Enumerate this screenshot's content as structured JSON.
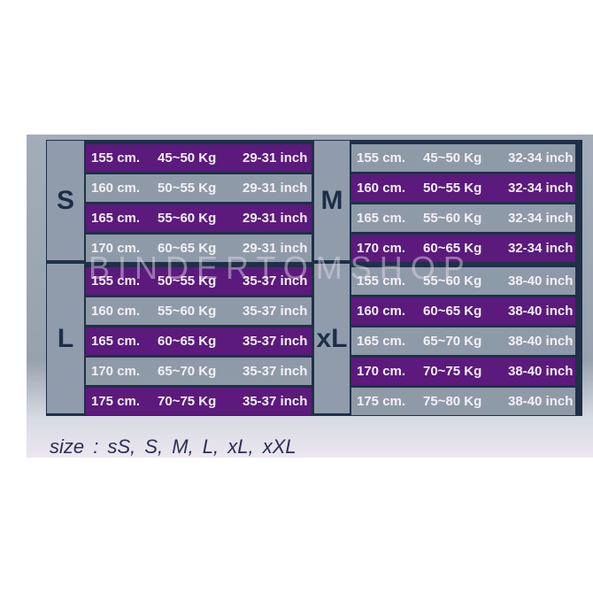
{
  "colors": {
    "purple_row": "#5b1a7c",
    "gray_row": "#8f9aa8",
    "border": "#1f3048",
    "label_text": "#1d2e48"
  },
  "sections": [
    {
      "size": "S",
      "first_row": "purple",
      "rows": [
        [
          "155 cm.",
          "45~50 Kg",
          "29-31 inch"
        ],
        [
          "160 cm.",
          "50~55 Kg",
          "29-31 inch"
        ],
        [
          "165 cm.",
          "55~60 Kg",
          "29-31 inch"
        ],
        [
          "170 cm.",
          "60~65 Kg",
          "29-31 inch"
        ]
      ]
    },
    {
      "size": "M",
      "first_row": "gray",
      "rows": [
        [
          "155 cm.",
          "45~50 Kg",
          "32-34 inch"
        ],
        [
          "160 cm.",
          "50~55 Kg",
          "32-34 inch"
        ],
        [
          "165 cm.",
          "55~60 Kg",
          "32-34 inch"
        ],
        [
          "170 cm.",
          "60~65 Kg",
          "32-34 inch"
        ]
      ]
    },
    {
      "size": "L",
      "first_row": "purple",
      "rows": [
        [
          "155 cm.",
          "50~55 Kg",
          "35-37 inch"
        ],
        [
          "160 cm.",
          "55~60 Kg",
          "35-37 inch"
        ],
        [
          "165 cm.",
          "60~65 Kg",
          "35-37 inch"
        ],
        [
          "170 cm.",
          "65~70 Kg",
          "35-37 inch"
        ],
        [
          "175 cm.",
          "70~75 Kg",
          "35-37 inch"
        ]
      ]
    },
    {
      "size": "xL",
      "first_row": "gray",
      "rows": [
        [
          "155 cm.",
          "55~60 Kg",
          "38-40 inch"
        ],
        [
          "160 cm.",
          "60~65 Kg",
          "38-40 inch"
        ],
        [
          "165 cm.",
          "65~70 Kg",
          "38-40 inch"
        ],
        [
          "170 cm.",
          "70~75 Kg",
          "38-40 inch"
        ],
        [
          "175 cm.",
          "75~80 Kg",
          "38-40 inch"
        ]
      ]
    }
  ],
  "watermark": "BINDERTOMSHOP",
  "caption": "size :  sS,  S,  M,  L,  xL,  xXL"
}
